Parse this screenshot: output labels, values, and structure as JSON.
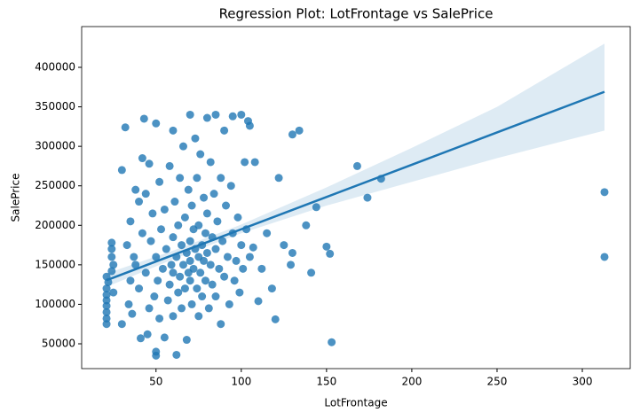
{
  "chart_data": {
    "type": "scatter",
    "title": "Regression Plot: LotFrontage vs SalePrice",
    "x_label": "LotFrontage",
    "y_label": "SalePrice",
    "xlim": [
      6.4,
      328.1
    ],
    "ylim": [
      18600,
      451600
    ],
    "xticks": [
      50,
      100,
      150,
      200,
      250,
      300
    ],
    "yticks": [
      50000,
      100000,
      150000,
      200000,
      250000,
      300000,
      350000,
      400000
    ],
    "series": [
      {
        "color": "#1f77b4",
        "x": [
          21,
          21,
          21,
          21,
          21,
          21,
          21,
          22,
          21,
          24,
          24,
          24,
          24,
          25,
          25,
          30,
          30,
          32,
          33,
          34,
          35,
          35,
          36,
          37,
          38,
          38,
          40,
          40,
          41,
          42,
          42,
          43,
          44,
          44,
          45,
          46,
          46,
          47,
          48,
          49,
          50,
          50,
          50,
          50,
          51,
          52,
          52,
          53,
          54,
          55,
          55,
          56,
          57,
          58,
          58,
          59,
          60,
          60,
          60,
          60,
          61,
          62,
          62,
          63,
          63,
          64,
          64,
          65,
          65,
          66,
          66,
          67,
          67,
          68,
          68,
          69,
          69,
          70,
          70,
          70,
          70,
          71,
          71,
          72,
          72,
          73,
          73,
          74,
          74,
          75,
          75,
          75,
          76,
          76,
          77,
          77,
          78,
          78,
          79,
          79,
          80,
          80,
          80,
          81,
          82,
          82,
          83,
          83,
          84,
          85,
          85,
          85,
          86,
          87,
          88,
          88,
          89,
          90,
          90,
          91,
          92,
          93,
          94,
          95,
          95,
          96,
          97,
          98,
          99,
          100,
          100,
          101,
          102,
          103,
          104,
          105,
          105,
          107,
          108,
          110,
          112,
          115,
          118,
          120,
          122,
          125,
          129,
          130,
          130,
          134,
          138,
          141,
          144,
          150,
          152,
          153,
          168,
          174,
          182,
          313,
          313
        ],
        "values": [
          75000,
          82000,
          90000,
          98000,
          105000,
          112000,
          120000,
          128000,
          135000,
          142000,
          160000,
          170000,
          178000,
          115000,
          150000,
          270000,
          75000,
          324000,
          175000,
          100000,
          130000,
          205000,
          88000,
          160000,
          150000,
          245000,
          120000,
          230000,
          57000,
          285000,
          190000,
          335000,
          240000,
          140000,
          62000,
          278000,
          95000,
          180000,
          215000,
          110000,
          329000,
          40000,
          35000,
          160000,
          130000,
          255000,
          82000,
          195000,
          145000,
          58000,
          220000,
          170000,
          105000,
          275000,
          125000,
          150000,
          320000,
          85000,
          185000,
          140000,
          230000,
          160000,
          36000,
          115000,
          200000,
          135000,
          260000,
          175000,
          95000,
          150000,
          300000,
          120000,
          210000,
          165000,
          55000,
          140000,
          245000,
          340000,
          180000,
          130000,
          155000,
          100000,
          225000,
          195000,
          145000,
          310000,
          170000,
          120000,
          260000,
          160000,
          85000,
          200000,
          140000,
          290000,
          175000,
          110000,
          235000,
          155000,
          130000,
          190000,
          336000,
          165000,
          215000,
          95000,
          150000,
          280000,
          185000,
          125000,
          240000,
          340000,
          170000,
          110000,
          205000,
          145000,
          260000,
          75000,
          180000,
          320000,
          135000,
          225000,
          160000,
          100000,
          250000,
          338000,
          190000,
          130000,
          155000,
          210000,
          115000,
          340000,
          175000,
          145000,
          280000,
          195000,
          332000,
          326000,
          160000,
          172000,
          280000,
          104000,
          145000,
          190000,
          120000,
          81000,
          260000,
          175000,
          150000,
          315000,
          165000,
          320000,
          200000,
          140000,
          223000,
          173000,
          164000,
          52000,
          275000,
          235000,
          259000,
          242000,
          160000
        ]
      }
    ],
    "regression": {
      "color": "#1f77b4",
      "x": [
        21,
        60,
        100,
        150,
        200,
        250,
        313
      ],
      "values": [
        130500,
        162400,
        195000,
        235900,
        276700,
        317600,
        369000
      ],
      "lower": [
        122000,
        157000,
        190000,
        225000,
        255000,
        285000,
        320000
      ],
      "upper": [
        139000,
        168000,
        201000,
        248000,
        298000,
        350000,
        430000
      ]
    }
  }
}
